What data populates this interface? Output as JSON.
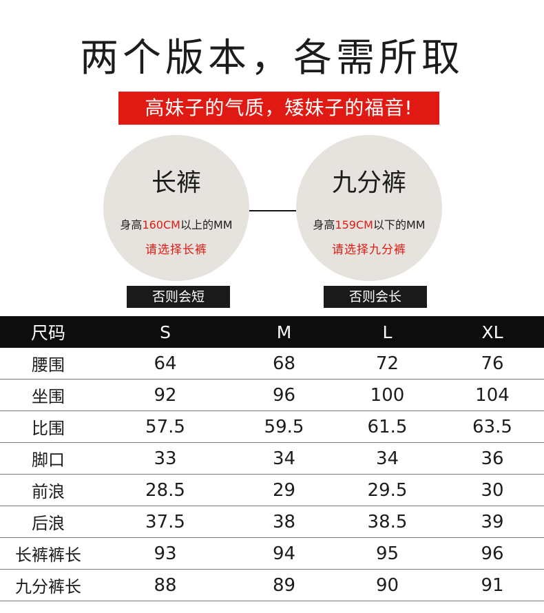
{
  "header": {
    "title": "两个版本，各需所取",
    "banner": "高妹子的气质，矮妹子的福音!"
  },
  "versions": [
    {
      "name": "长裤",
      "line_prefix": "身高",
      "line_highlight": "160CM",
      "line_suffix": "以上的MM",
      "advice": "请选择长裤",
      "note": "否则会短"
    },
    {
      "name": "九分裤",
      "line_prefix": "身高",
      "line_highlight": "159CM",
      "line_suffix": "以下的MM",
      "advice": "请选择九分裤",
      "note": "否则会长"
    }
  ],
  "colors": {
    "accent_red": "#e01a12",
    "circle_bg": "#e6e3df",
    "header_black": "#0d0d0d"
  },
  "size_table": {
    "headers": [
      "尺码",
      "S",
      "M",
      "L",
      "XL"
    ],
    "rows": [
      [
        "腰围",
        "64",
        "68",
        "72",
        "76"
      ],
      [
        "坐围",
        "92",
        "96",
        "100",
        "104"
      ],
      [
        "比围",
        "57.5",
        "59.5",
        "61.5",
        "63.5"
      ],
      [
        "脚口",
        "33",
        "34",
        "34",
        "36"
      ],
      [
        "前浪",
        "28.5",
        "29",
        "29.5",
        "30"
      ],
      [
        "后浪",
        "37.5",
        "38",
        "38.5",
        "39"
      ],
      [
        "长裤裤长",
        "93",
        "94",
        "95",
        "96"
      ],
      [
        "九分裤长",
        "88",
        "89",
        "90",
        "91"
      ]
    ]
  }
}
